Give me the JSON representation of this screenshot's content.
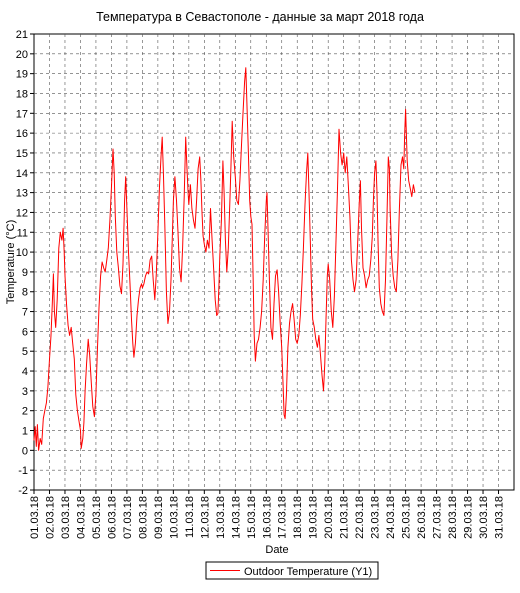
{
  "chart_data": {
    "type": "line",
    "title": "Температура в Севастополе - данные за март 2018 года",
    "xlabel": "Date",
    "ylabel": "Temperature (°C)",
    "ylim": [
      -2,
      21
    ],
    "xlim": [
      1,
      32
    ],
    "grid": true,
    "legend_position": "bottom-center",
    "x_tick_labels": [
      "01.03.18",
      "02.03.18",
      "03.03.18",
      "04.03.18",
      "05.03.18",
      "06.03.18",
      "07.03.18",
      "08.03.18",
      "09.03.18",
      "10.03.18",
      "11.03.18",
      "12.03.18",
      "13.03.18",
      "14.03.18",
      "15.03.18",
      "16.03.18",
      "17.03.18",
      "18.03.18",
      "19.03.18",
      "20.03.18",
      "21.03.18",
      "22.03.18",
      "23.03.18",
      "24.03.18",
      "25.03.18",
      "26.03.18",
      "27.03.18",
      "28.03.18",
      "29.03.18",
      "30.03.18",
      "31.03.18"
    ],
    "y_ticks": [
      -2,
      -1,
      0,
      1,
      2,
      3,
      4,
      5,
      6,
      7,
      8,
      9,
      10,
      11,
      12,
      13,
      14,
      15,
      16,
      17,
      18,
      19,
      20,
      21
    ],
    "series": [
      {
        "name": "Outdoor Temperature (Y1)",
        "color": "#ff0000",
        "points": [
          [
            1.0,
            0.5
          ],
          [
            1.08,
            1.2
          ],
          [
            1.15,
            0.2
          ],
          [
            1.22,
            1.3
          ],
          [
            1.3,
            0.0
          ],
          [
            1.4,
            0.6
          ],
          [
            1.5,
            0.3
          ],
          [
            1.6,
            1.6
          ],
          [
            1.7,
            2.0
          ],
          [
            1.8,
            2.4
          ],
          [
            1.9,
            3.2
          ],
          [
            2.0,
            4.6
          ],
          [
            2.1,
            5.8
          ],
          [
            2.18,
            7.4
          ],
          [
            2.25,
            8.9
          ],
          [
            2.32,
            7.0
          ],
          [
            2.4,
            6.2
          ],
          [
            2.5,
            7.6
          ],
          [
            2.6,
            10.2
          ],
          [
            2.7,
            11.0
          ],
          [
            2.8,
            10.6
          ],
          [
            2.88,
            11.2
          ],
          [
            2.95,
            10.0
          ],
          [
            3.0,
            8.8
          ],
          [
            3.1,
            7.4
          ],
          [
            3.2,
            6.3
          ],
          [
            3.3,
            5.8
          ],
          [
            3.4,
            6.2
          ],
          [
            3.5,
            5.4
          ],
          [
            3.6,
            4.6
          ],
          [
            3.7,
            2.8
          ],
          [
            3.8,
            2.0
          ],
          [
            3.9,
            1.5
          ],
          [
            4.0,
            1.0
          ],
          [
            4.05,
            0.1
          ],
          [
            4.15,
            0.6
          ],
          [
            4.22,
            1.4
          ],
          [
            4.3,
            3.0
          ],
          [
            4.4,
            4.4
          ],
          [
            4.5,
            5.6
          ],
          [
            4.6,
            4.8
          ],
          [
            4.7,
            3.4
          ],
          [
            4.8,
            2.2
          ],
          [
            4.9,
            1.7
          ],
          [
            5.0,
            2.8
          ],
          [
            5.1,
            5.2
          ],
          [
            5.2,
            7.2
          ],
          [
            5.3,
            8.8
          ],
          [
            5.4,
            9.5
          ],
          [
            5.5,
            9.2
          ],
          [
            5.6,
            9.0
          ],
          [
            5.7,
            9.6
          ],
          [
            5.8,
            10.2
          ],
          [
            5.9,
            11.6
          ],
          [
            6.0,
            13.2
          ],
          [
            6.1,
            15.2
          ],
          [
            6.18,
            14.0
          ],
          [
            6.25,
            11.8
          ],
          [
            6.35,
            10.0
          ],
          [
            6.45,
            9.2
          ],
          [
            6.55,
            8.3
          ],
          [
            6.65,
            7.9
          ],
          [
            6.75,
            9.4
          ],
          [
            6.85,
            12.6
          ],
          [
            6.92,
            13.8
          ],
          [
            7.0,
            12.2
          ],
          [
            7.1,
            10.0
          ],
          [
            7.2,
            8.4
          ],
          [
            7.3,
            6.6
          ],
          [
            7.38,
            5.4
          ],
          [
            7.45,
            4.7
          ],
          [
            7.55,
            5.4
          ],
          [
            7.65,
            6.8
          ],
          [
            7.75,
            7.6
          ],
          [
            7.85,
            8.2
          ],
          [
            7.95,
            8.4
          ],
          [
            8.0,
            8.2
          ],
          [
            8.1,
            8.4
          ],
          [
            8.2,
            8.8
          ],
          [
            8.3,
            9.0
          ],
          [
            8.4,
            8.9
          ],
          [
            8.5,
            9.6
          ],
          [
            8.6,
            9.8
          ],
          [
            8.7,
            8.6
          ],
          [
            8.8,
            7.6
          ],
          [
            8.9,
            8.9
          ],
          [
            9.0,
            11.0
          ],
          [
            9.1,
            13.2
          ],
          [
            9.2,
            14.8
          ],
          [
            9.28,
            15.8
          ],
          [
            9.36,
            14.0
          ],
          [
            9.45,
            11.4
          ],
          [
            9.55,
            8.0
          ],
          [
            9.65,
            6.4
          ],
          [
            9.75,
            7.0
          ],
          [
            9.85,
            8.6
          ],
          [
            9.95,
            11.2
          ],
          [
            10.0,
            12.6
          ],
          [
            10.1,
            13.8
          ],
          [
            10.2,
            12.6
          ],
          [
            10.3,
            11.0
          ],
          [
            10.4,
            9.2
          ],
          [
            10.5,
            8.5
          ],
          [
            10.6,
            10.2
          ],
          [
            10.7,
            12.8
          ],
          [
            10.8,
            15.8
          ],
          [
            10.88,
            14.2
          ],
          [
            10.95,
            13.0
          ],
          [
            11.0,
            12.4
          ],
          [
            11.1,
            13.4
          ],
          [
            11.2,
            12.2
          ],
          [
            11.3,
            11.6
          ],
          [
            11.4,
            11.2
          ],
          [
            11.5,
            12.6
          ],
          [
            11.6,
            14.2
          ],
          [
            11.7,
            14.8
          ],
          [
            11.78,
            13.6
          ],
          [
            11.85,
            12.0
          ],
          [
            11.92,
            10.8
          ],
          [
            12.0,
            10.4
          ],
          [
            12.1,
            10.0
          ],
          [
            12.2,
            10.6
          ],
          [
            12.3,
            10.2
          ],
          [
            12.4,
            12.2
          ],
          [
            12.5,
            10.6
          ],
          [
            12.6,
            9.2
          ],
          [
            12.7,
            7.6
          ],
          [
            12.8,
            6.8
          ],
          [
            12.88,
            6.9
          ],
          [
            12.95,
            8.4
          ],
          [
            13.0,
            9.8
          ],
          [
            13.1,
            11.6
          ],
          [
            13.2,
            14.6
          ],
          [
            13.28,
            13.0
          ],
          [
            13.36,
            10.6
          ],
          [
            13.45,
            9.0
          ],
          [
            13.55,
            10.2
          ],
          [
            13.65,
            12.6
          ],
          [
            13.72,
            14.4
          ],
          [
            13.8,
            16.6
          ],
          [
            13.9,
            14.8
          ],
          [
            14.0,
            13.8
          ],
          [
            14.1,
            12.6
          ],
          [
            14.2,
            12.4
          ],
          [
            14.3,
            13.6
          ],
          [
            14.4,
            15.4
          ],
          [
            14.5,
            17.0
          ],
          [
            14.6,
            18.6
          ],
          [
            14.68,
            19.3
          ],
          [
            14.76,
            17.2
          ],
          [
            14.85,
            14.8
          ],
          [
            14.93,
            12.6
          ],
          [
            15.0,
            11.8
          ],
          [
            15.08,
            11.4
          ],
          [
            15.15,
            8.8
          ],
          [
            15.22,
            5.8
          ],
          [
            15.3,
            4.5
          ],
          [
            15.4,
            5.4
          ],
          [
            15.5,
            5.6
          ],
          [
            15.6,
            6.2
          ],
          [
            15.7,
            7.0
          ],
          [
            15.8,
            8.6
          ],
          [
            15.9,
            10.8
          ],
          [
            16.0,
            12.6
          ],
          [
            16.05,
            13.0
          ],
          [
            16.12,
            11.0
          ],
          [
            16.2,
            8.6
          ],
          [
            16.3,
            6.2
          ],
          [
            16.4,
            5.6
          ],
          [
            16.5,
            7.4
          ],
          [
            16.6,
            8.8
          ],
          [
            16.7,
            9.1
          ],
          [
            16.8,
            8.0
          ],
          [
            16.9,
            6.4
          ],
          [
            17.0,
            5.2
          ],
          [
            17.08,
            3.4
          ],
          [
            17.15,
            1.8
          ],
          [
            17.22,
            1.6
          ],
          [
            17.3,
            2.8
          ],
          [
            17.4,
            5.2
          ],
          [
            17.5,
            6.4
          ],
          [
            17.6,
            7.0
          ],
          [
            17.7,
            7.4
          ],
          [
            17.8,
            6.6
          ],
          [
            17.9,
            5.6
          ],
          [
            18.0,
            5.4
          ],
          [
            18.1,
            5.8
          ],
          [
            18.2,
            6.8
          ],
          [
            18.3,
            8.4
          ],
          [
            18.4,
            10.2
          ],
          [
            18.5,
            12.4
          ],
          [
            18.6,
            14.0
          ],
          [
            18.68,
            15.0
          ],
          [
            18.76,
            13.0
          ],
          [
            18.85,
            10.4
          ],
          [
            18.92,
            8.2
          ],
          [
            19.0,
            6.6
          ],
          [
            19.1,
            6.2
          ],
          [
            19.2,
            5.6
          ],
          [
            19.3,
            5.2
          ],
          [
            19.4,
            5.8
          ],
          [
            19.5,
            4.8
          ],
          [
            19.6,
            3.8
          ],
          [
            19.7,
            3.0
          ],
          [
            19.78,
            4.4
          ],
          [
            19.86,
            6.6
          ],
          [
            19.94,
            8.8
          ],
          [
            20.0,
            9.4
          ],
          [
            20.1,
            8.6
          ],
          [
            20.2,
            7.0
          ],
          [
            20.3,
            6.2
          ],
          [
            20.4,
            7.8
          ],
          [
            20.5,
            10.4
          ],
          [
            20.6,
            13.2
          ],
          [
            20.7,
            16.2
          ],
          [
            20.8,
            15.0
          ],
          [
            20.9,
            14.4
          ],
          [
            21.0,
            15.0
          ],
          [
            21.1,
            14.0
          ],
          [
            21.2,
            14.8
          ],
          [
            21.3,
            13.4
          ],
          [
            21.4,
            11.8
          ],
          [
            21.5,
            9.6
          ],
          [
            21.6,
            8.6
          ],
          [
            21.7,
            8.0
          ],
          [
            21.8,
            8.6
          ],
          [
            21.9,
            10.4
          ],
          [
            22.0,
            12.4
          ],
          [
            22.08,
            13.6
          ],
          [
            22.15,
            11.2
          ],
          [
            22.25,
            9.2
          ],
          [
            22.35,
            8.8
          ],
          [
            22.45,
            8.2
          ],
          [
            22.55,
            8.6
          ],
          [
            22.65,
            8.8
          ],
          [
            22.75,
            9.6
          ],
          [
            22.85,
            10.8
          ],
          [
            22.92,
            12.6
          ],
          [
            23.0,
            14.0
          ],
          [
            23.08,
            14.6
          ],
          [
            23.15,
            13.0
          ],
          [
            23.22,
            10.4
          ],
          [
            23.3,
            8.2
          ],
          [
            23.4,
            7.4
          ],
          [
            23.5,
            7.0
          ],
          [
            23.6,
            6.8
          ],
          [
            23.7,
            8.6
          ],
          [
            23.8,
            11.8
          ],
          [
            23.88,
            14.8
          ],
          [
            23.95,
            14.2
          ],
          [
            24.0,
            12.2
          ],
          [
            24.1,
            9.8
          ],
          [
            24.2,
            8.8
          ],
          [
            24.3,
            8.2
          ],
          [
            24.4,
            8.0
          ],
          [
            24.5,
            9.6
          ],
          [
            24.6,
            12.2
          ],
          [
            24.7,
            14.4
          ],
          [
            24.8,
            14.8
          ],
          [
            24.88,
            14.2
          ],
          [
            24.94,
            16.0
          ],
          [
            25.0,
            17.2
          ],
          [
            25.1,
            14.6
          ],
          [
            25.2,
            13.6
          ],
          [
            25.3,
            13.2
          ],
          [
            25.4,
            12.8
          ],
          [
            25.5,
            13.4
          ],
          [
            25.6,
            13.0
          ]
        ]
      }
    ]
  }
}
